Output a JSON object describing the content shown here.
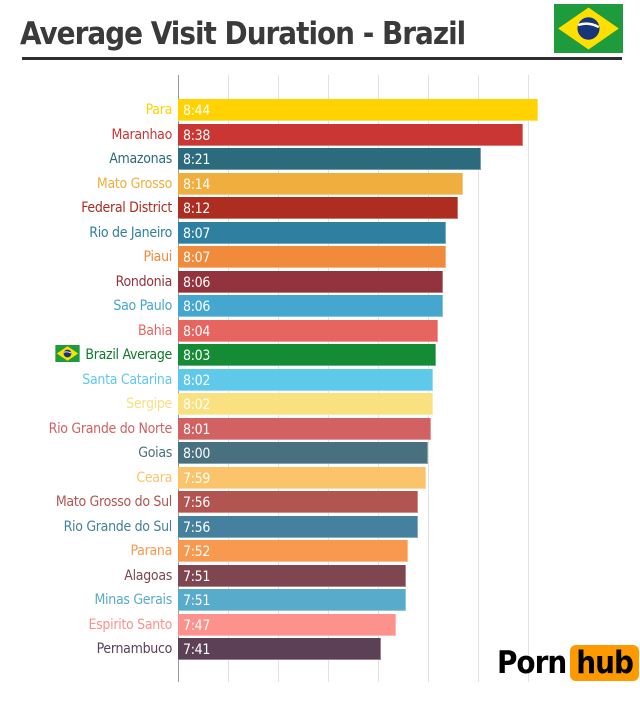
{
  "header": {
    "title": "Average Visit Duration - Brazil",
    "flag_icon": "brazil-flag-icon"
  },
  "chart_data": {
    "type": "bar",
    "orientation": "horizontal",
    "title": "Average Visit Duration - Brazil",
    "value_format": "m:ss",
    "axis": {
      "min": "6:20",
      "max": "8:50",
      "gridline_step": "0:20",
      "gridlines": [
        "6:20",
        "6:40",
        "7:00",
        "7:20",
        "7:40",
        "8:00",
        "8:20",
        "8:40"
      ],
      "tick_labels_visible": false,
      "grid": true
    },
    "legend": "none",
    "bars": [
      {
        "label": "Para",
        "value": "8:44",
        "color": "#FFD200"
      },
      {
        "label": "Maranhao",
        "value": "8:38",
        "color": "#CA3633"
      },
      {
        "label": "Amazonas",
        "value": "8:21",
        "color": "#2B6B7D"
      },
      {
        "label": "Mato Grosso",
        "value": "8:14",
        "color": "#EFAE3D"
      },
      {
        "label": "Federal District",
        "value": "8:12",
        "color": "#AD2D20"
      },
      {
        "label": "Rio de Janeiro",
        "value": "8:07",
        "color": "#2F7FA1"
      },
      {
        "label": "Piaui",
        "value": "8:07",
        "color": "#F18B3C"
      },
      {
        "label": "Rondonia",
        "value": "8:06",
        "color": "#93333E"
      },
      {
        "label": "Sao Paulo",
        "value": "8:06",
        "color": "#45A6CF"
      },
      {
        "label": "Bahia",
        "value": "8:04",
        "color": "#E66560"
      },
      {
        "label": "Brazil Average",
        "value": "8:03",
        "color": "#158B35",
        "label_color": "#0F7A2D",
        "flag_icon": true
      },
      {
        "label": "Santa Catarina",
        "value": "8:02",
        "color": "#5FC9EA"
      },
      {
        "label": "Sergipe",
        "value": "8:02",
        "color": "#F9E180"
      },
      {
        "label": "Rio Grande do Norte",
        "value": "8:01",
        "color": "#D26161"
      },
      {
        "label": "Goias",
        "value": "8:00",
        "color": "#49707F"
      },
      {
        "label": "Ceara",
        "value": "7:59",
        "color": "#FBC46A"
      },
      {
        "label": "Mato Grosso do Sul",
        "value": "7:56",
        "color": "#B2544F"
      },
      {
        "label": "Rio Grande do Sul",
        "value": "7:56",
        "color": "#45809E"
      },
      {
        "label": "Parana",
        "value": "7:52",
        "color": "#F8994F"
      },
      {
        "label": "Alagoas",
        "value": "7:51",
        "color": "#7D4650"
      },
      {
        "label": "Minas Gerais",
        "value": "7:51",
        "color": "#58ABCB"
      },
      {
        "label": "Espirito Santo",
        "value": "7:47",
        "color": "#FD918C"
      },
      {
        "label": "Pernambuco",
        "value": "7:41",
        "color": "#5C4156"
      }
    ]
  },
  "footer": {
    "logo_text_plain": "Porn",
    "logo_text_badge": "hub",
    "logo_badge_color": "#FF9900"
  },
  "colors": {
    "title_text": "#3a3a3a",
    "axis_line": "#9a9a9a",
    "gridline": "#e2e2e2",
    "bar_value_text": "#ffffff",
    "flag_green": "#1E9B3C",
    "flag_yellow": "#FEDF00",
    "flag_blue": "#16357B"
  }
}
